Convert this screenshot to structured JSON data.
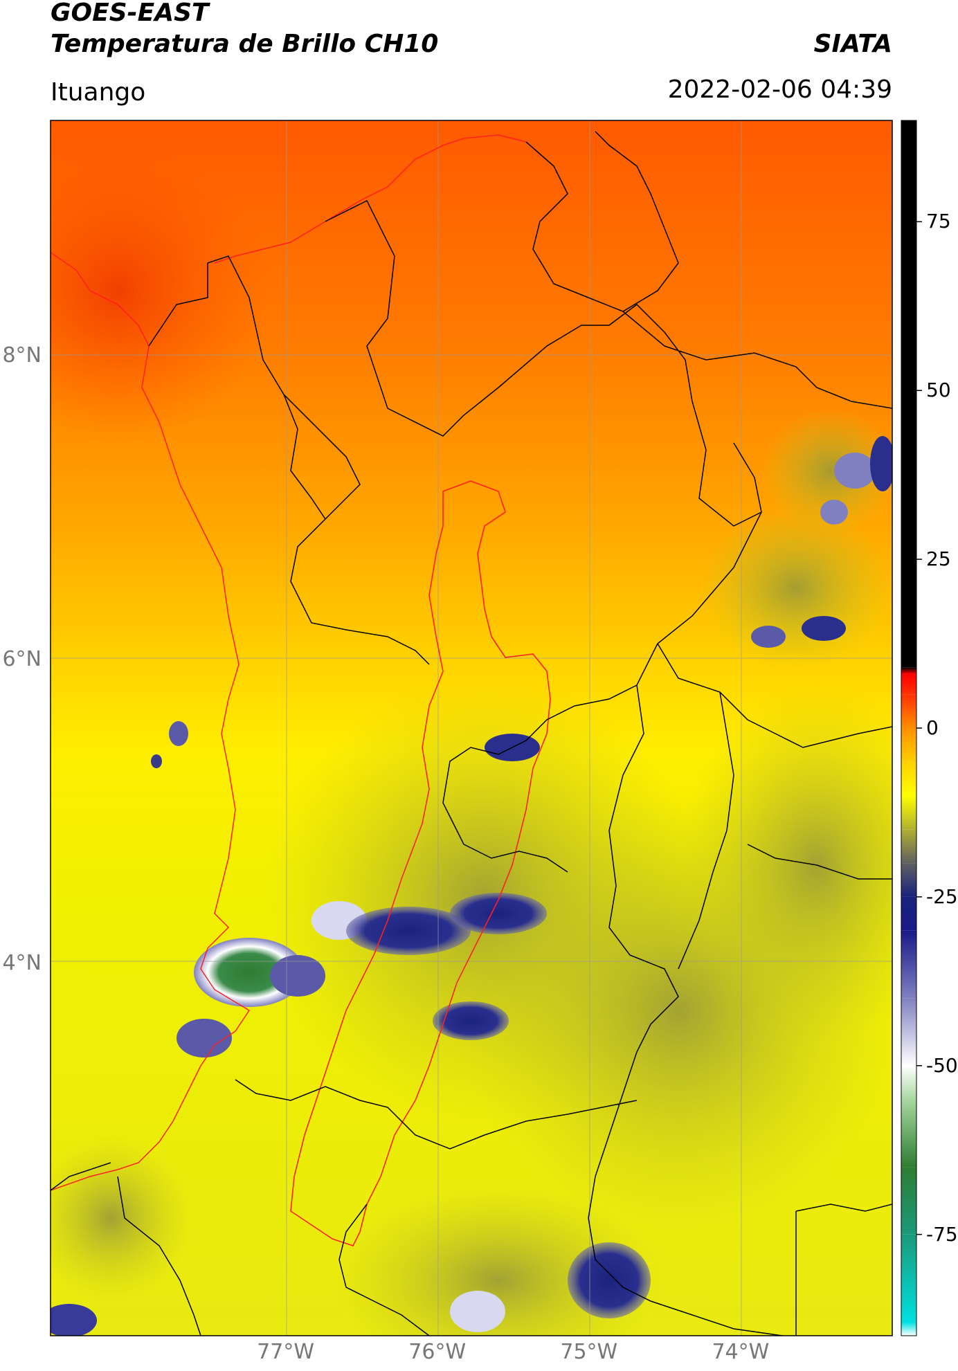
{
  "header": {
    "satellite": "GOES-EAST",
    "product": "Temperatura de Brillo CH10",
    "organization": "SIATA",
    "region": "Ituango",
    "timestamp": "2022-02-06 04:39"
  },
  "map": {
    "extent": {
      "lon_min": -78.55,
      "lon_max": -73.0,
      "lat_min": 1.55,
      "lat_max": 9.55
    },
    "lat_ticks": [
      {
        "value": 8,
        "label": "8°N"
      },
      {
        "value": 6,
        "label": "6°N"
      },
      {
        "value": 4,
        "label": "4°N"
      }
    ],
    "lon_ticks": [
      {
        "value": -77,
        "label": "77°W"
      },
      {
        "value": -76,
        "label": "76°W"
      },
      {
        "value": -75,
        "label": "75°W"
      },
      {
        "value": -74,
        "label": "74°W"
      }
    ],
    "colors": {
      "coastline_and_basin": "#ff2020",
      "admin_borders": "#000000",
      "gridlines": "#aaaaaa"
    }
  },
  "colorbar": {
    "range": [
      -90,
      90
    ],
    "ticks": [
      {
        "value": 75,
        "label": "75"
      },
      {
        "value": 50,
        "label": "50"
      },
      {
        "value": 25,
        "label": "25"
      },
      {
        "value": 0,
        "label": "0"
      },
      {
        "value": -25,
        "label": "-25"
      },
      {
        "value": -50,
        "label": "-50"
      },
      {
        "value": -75,
        "label": "-75"
      }
    ],
    "stops": [
      {
        "value": -90,
        "color": "#ffffff"
      },
      {
        "value": -88,
        "color": "#00e0e0"
      },
      {
        "value": -75,
        "color": "#1a9a7a"
      },
      {
        "value": -65,
        "color": "#2e7d32"
      },
      {
        "value": -55,
        "color": "#a8d8a0"
      },
      {
        "value": -50,
        "color": "#ffffff"
      },
      {
        "value": -40,
        "color": "#8080c0"
      },
      {
        "value": -30,
        "color": "#1a1a8a"
      },
      {
        "value": -25,
        "color": "#1a237e"
      },
      {
        "value": -20,
        "color": "#606060"
      },
      {
        "value": -15,
        "color": "#b0b030"
      },
      {
        "value": -10,
        "color": "#ffff00"
      },
      {
        "value": -5,
        "color": "#ffd000"
      },
      {
        "value": 0,
        "color": "#ff9000"
      },
      {
        "value": 5,
        "color": "#ff3000"
      },
      {
        "value": 8,
        "color": "#ff0000"
      },
      {
        "value": 9,
        "color": "#000000"
      },
      {
        "value": 90,
        "color": "#000000"
      }
    ]
  }
}
